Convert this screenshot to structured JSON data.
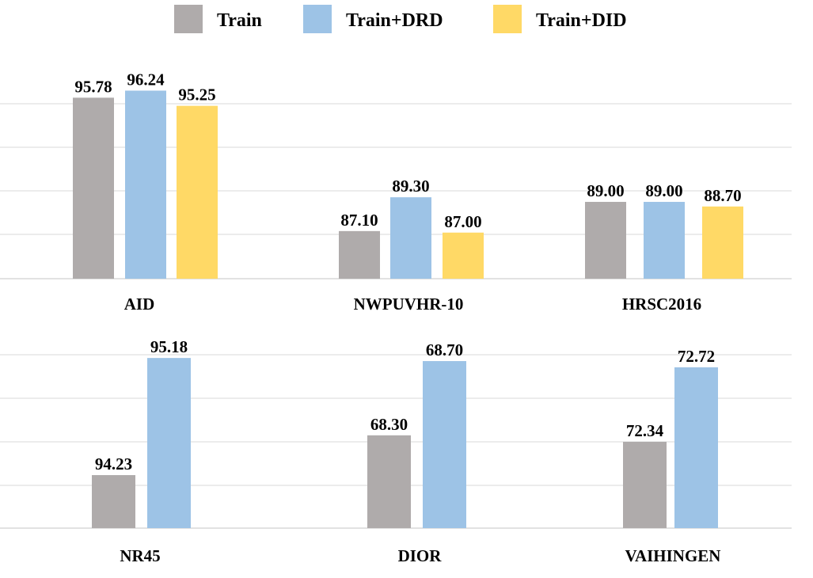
{
  "legend": [
    {
      "name": "Train",
      "color": "#AFABAB"
    },
    {
      "name": "Train+DRD",
      "color": "#9DC3E6"
    },
    {
      "name": "Train+DID",
      "color": "#FFD966"
    }
  ],
  "chart_data": [
    {
      "type": "bar",
      "series": [
        {
          "name": "Train",
          "color": "#AFABAB",
          "values": [
            95.78,
            87.1,
            89.0
          ]
        },
        {
          "name": "Train+DRD",
          "color": "#9DC3E6",
          "values": [
            96.24,
            89.3,
            89.0
          ]
        },
        {
          "name": "Train+DID",
          "color": "#FFD966",
          "values": [
            95.25,
            87.0,
            88.7
          ]
        }
      ],
      "groups": [
        {
          "category": "AID",
          "labels": [
            "95.78",
            "96.24",
            "95.25"
          ]
        },
        {
          "category": "NWPUVHR-10",
          "labels": [
            "87.10",
            "89.30",
            "87.00"
          ]
        },
        {
          "category": "HRSC2016",
          "labels": [
            "89.00",
            "89.00",
            "88.70"
          ]
        }
      ],
      "grid": true,
      "legend_position": "top"
    },
    {
      "type": "bar",
      "series": [
        {
          "name": "Train",
          "color": "#AFABAB",
          "values": [
            94.23,
            68.3,
            72.34
          ]
        },
        {
          "name": "Train+DRD",
          "color": "#9DC3E6",
          "values": [
            95.18,
            68.7,
            72.72
          ]
        }
      ],
      "groups": [
        {
          "category": "NR45",
          "labels": [
            "94.23",
            "95.18"
          ]
        },
        {
          "category": "DIOR",
          "labels": [
            "68.30",
            "68.70"
          ]
        },
        {
          "category": "VAIHINGEN",
          "labels": [
            "72.34",
            "72.72"
          ]
        }
      ],
      "grid": true,
      "legend_position": "top"
    }
  ]
}
